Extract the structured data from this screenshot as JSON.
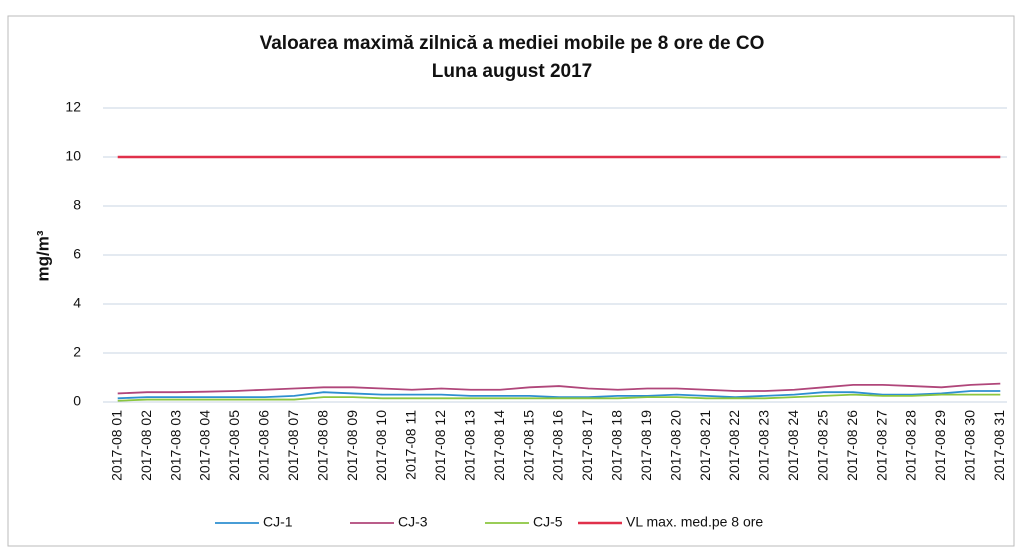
{
  "chart_data": {
    "type": "line",
    "title": "Valoarea maximă zilnică a mediei mobile pe 8 ore de CO",
    "subtitle": "Luna august 2017",
    "y_label": "mg/m³",
    "categories": [
      "2017-08 01",
      "2017-08 02",
      "2017-08 03",
      "2017-08 04",
      "2017-08 05",
      "2017-08 06",
      "2017-08 07",
      "2017-08 08",
      "2017-08 09",
      "2017-08 10",
      "2017-08 11",
      "2017-08 12",
      "2017-08 13",
      "2017-08 14",
      "2017-08 15",
      "2017-08 16",
      "2017-08 17",
      "2017-08 18",
      "2017-08 19",
      "2017-08 20",
      "2017-08 21",
      "2017-08 22",
      "2017-08 23",
      "2017-08 24",
      "2017-08 25",
      "2017-08 26",
      "2017-08 27",
      "2017-08 28",
      "2017-08 29",
      "2017-08 30",
      "2017-08 31"
    ],
    "series": [
      {
        "name": "CJ-1",
        "color": "#2e8fd0",
        "values": [
          0.15,
          0.2,
          0.2,
          0.2,
          0.2,
          0.2,
          0.25,
          0.4,
          0.35,
          0.3,
          0.3,
          0.3,
          0.25,
          0.25,
          0.25,
          0.2,
          0.2,
          0.25,
          0.25,
          0.3,
          0.25,
          0.2,
          0.25,
          0.3,
          0.4,
          0.4,
          0.3,
          0.3,
          0.35,
          0.45,
          0.45
        ]
      },
      {
        "name": "CJ-3",
        "color": "#b0467a",
        "values": [
          0.35,
          0.4,
          0.4,
          0.42,
          0.45,
          0.5,
          0.55,
          0.6,
          0.6,
          0.55,
          0.5,
          0.55,
          0.5,
          0.5,
          0.6,
          0.65,
          0.55,
          0.5,
          0.55,
          0.55,
          0.5,
          0.45,
          0.45,
          0.5,
          0.6,
          0.7,
          0.7,
          0.65,
          0.6,
          0.7,
          0.75
        ]
      },
      {
        "name": "CJ-5",
        "color": "#8cc63f",
        "values": [
          0.05,
          0.1,
          0.1,
          0.1,
          0.1,
          0.1,
          0.1,
          0.2,
          0.2,
          0.15,
          0.15,
          0.15,
          0.15,
          0.15,
          0.15,
          0.15,
          0.15,
          0.15,
          0.2,
          0.2,
          0.15,
          0.15,
          0.15,
          0.2,
          0.25,
          0.3,
          0.25,
          0.25,
          0.3,
          0.3,
          0.3
        ]
      },
      {
        "name": "VL max. med.pe 8 ore",
        "color": "#e0304a",
        "values": [
          10,
          10,
          10,
          10,
          10,
          10,
          10,
          10,
          10,
          10,
          10,
          10,
          10,
          10,
          10,
          10,
          10,
          10,
          10,
          10,
          10,
          10,
          10,
          10,
          10,
          10,
          10,
          10,
          10,
          10,
          10
        ]
      }
    ],
    "ylim": [
      0,
      12
    ],
    "yticks": [
      0,
      2,
      4,
      6,
      8,
      10,
      12
    ],
    "grid": true
  }
}
